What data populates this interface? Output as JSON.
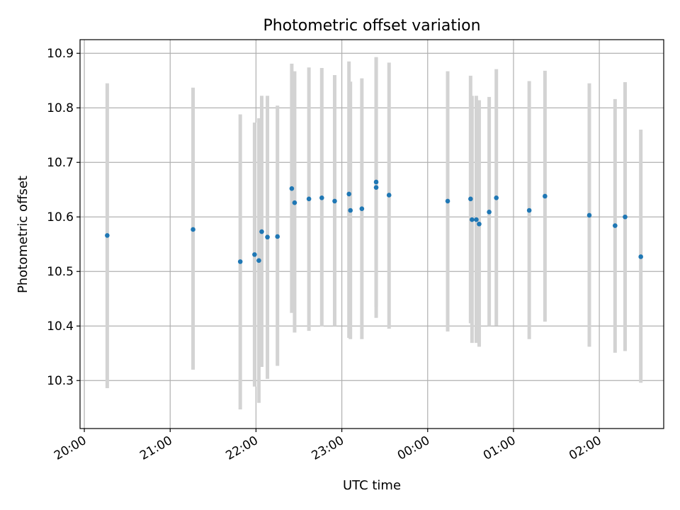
{
  "chart_data": {
    "type": "scatter",
    "title": "Photometric offset variation",
    "xlabel": "UTC time",
    "ylabel": "Photometric offset",
    "x_ticks": [
      "20:00",
      "21:00",
      "22:00",
      "23:00",
      "00:00",
      "01:00",
      "02:00"
    ],
    "y_ticks": [
      "10.3",
      "10.4",
      "10.5",
      "10.6",
      "10.7",
      "10.8",
      "10.9"
    ],
    "xlim": [
      "19:57",
      "02:45"
    ],
    "ylim": [
      10.212,
      10.925
    ],
    "grid": true,
    "marker_color": "#1f77b4",
    "errorbar_color": "#d3d3d3",
    "series": [
      {
        "points": [
          {
            "t": "20:16",
            "y": 10.566,
            "lo": 10.286,
            "hi": 10.845
          },
          {
            "t": "21:16",
            "y": 10.577,
            "lo": 10.32,
            "hi": 10.837
          },
          {
            "t": "21:49",
            "y": 10.518,
            "lo": 10.247,
            "hi": 10.788
          },
          {
            "t": "21:59",
            "y": 10.531,
            "lo": 10.289,
            "hi": 10.773
          },
          {
            "t": "22:02",
            "y": 10.52,
            "lo": 10.259,
            "hi": 10.781
          },
          {
            "t": "22:04",
            "y": 10.573,
            "lo": 10.325,
            "hi": 10.822
          },
          {
            "t": "22:08",
            "y": 10.563,
            "lo": 10.303,
            "hi": 10.822
          },
          {
            "t": "22:15",
            "y": 10.564,
            "lo": 10.327,
            "hi": 10.804
          },
          {
            "t": "22:25",
            "y": 10.652,
            "lo": 10.424,
            "hi": 10.881
          },
          {
            "t": "22:27",
            "y": 10.626,
            "lo": 10.388,
            "hi": 10.867
          },
          {
            "t": "22:37",
            "y": 10.633,
            "lo": 10.391,
            "hi": 10.874
          },
          {
            "t": "22:46",
            "y": 10.635,
            "lo": 10.399,
            "hi": 10.873
          },
          {
            "t": "22:55",
            "y": 10.629,
            "lo": 10.4,
            "hi": 10.86
          },
          {
            "t": "23:05",
            "y": 10.642,
            "lo": 10.378,
            "hi": 10.885
          },
          {
            "t": "23:06",
            "y": 10.612,
            "lo": 10.376,
            "hi": 10.848
          },
          {
            "t": "23:14",
            "y": 10.615,
            "lo": 10.376,
            "hi": 10.854
          },
          {
            "t": "23:24",
            "y": 10.664,
            "lo": 10.435,
            "hi": 10.892
          },
          {
            "t": "23:24",
            "y": 10.654,
            "lo": 10.415,
            "hi": 10.893
          },
          {
            "t": "23:33",
            "y": 10.64,
            "lo": 10.395,
            "hi": 10.883
          },
          {
            "t": "00:14",
            "y": 10.629,
            "lo": 10.39,
            "hi": 10.867
          },
          {
            "t": "00:30",
            "y": 10.633,
            "lo": 10.405,
            "hi": 10.859
          },
          {
            "t": "00:31",
            "y": 10.595,
            "lo": 10.369,
            "hi": 10.822
          },
          {
            "t": "00:34",
            "y": 10.595,
            "lo": 10.369,
            "hi": 10.822
          },
          {
            "t": "00:36",
            "y": 10.587,
            "lo": 10.362,
            "hi": 10.814
          },
          {
            "t": "00:43",
            "y": 10.609,
            "lo": 10.4,
            "hi": 10.82
          },
          {
            "t": "00:48",
            "y": 10.635,
            "lo": 10.401,
            "hi": 10.871
          },
          {
            "t": "01:11",
            "y": 10.612,
            "lo": 10.376,
            "hi": 10.849
          },
          {
            "t": "01:22",
            "y": 10.638,
            "lo": 10.408,
            "hi": 10.868
          },
          {
            "t": "01:53",
            "y": 10.603,
            "lo": 10.362,
            "hi": 10.845
          },
          {
            "t": "02:11",
            "y": 10.584,
            "lo": 10.351,
            "hi": 10.816
          },
          {
            "t": "02:18",
            "y": 10.6,
            "lo": 10.354,
            "hi": 10.847
          },
          {
            "t": "02:29",
            "y": 10.527,
            "lo": 10.296,
            "hi": 10.76
          }
        ]
      }
    ]
  }
}
